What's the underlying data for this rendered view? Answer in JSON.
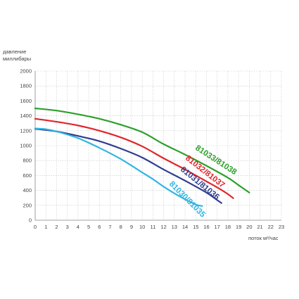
{
  "chart_data": {
    "type": "line",
    "ylabel_line1": "давление",
    "ylabel_line2": "миллибары",
    "xlabel": "поток м³/час",
    "xlim": [
      0,
      23
    ],
    "ylim": [
      0,
      2000
    ],
    "x_ticks": [
      "0",
      "1",
      "2",
      "3",
      "4",
      "5",
      "6",
      "7",
      "8",
      "9",
      "10",
      "11",
      "12",
      "13",
      "14",
      "15",
      "16",
      "17",
      "18",
      "19",
      "20",
      "21",
      "22",
      "23"
    ],
    "y_ticks": [
      "0",
      "200",
      "400",
      "600",
      "800",
      "1000",
      "1200",
      "1400",
      "1600",
      "1800",
      "2000"
    ],
    "grid": true,
    "series": [
      {
        "name": "81033/81038",
        "color": "#2ca02c",
        "x": [
          0,
          2,
          4,
          6,
          8,
          10,
          12,
          14,
          16,
          18,
          19,
          20
        ],
        "y": [
          1500,
          1470,
          1420,
          1360,
          1280,
          1180,
          1020,
          880,
          730,
          570,
          470,
          370
        ]
      },
      {
        "name": "81032/81037",
        "color": "#e0262b",
        "x": [
          0,
          2,
          4,
          6,
          8,
          10,
          12,
          14,
          16,
          17,
          18,
          18.5
        ],
        "y": [
          1360,
          1320,
          1270,
          1200,
          1110,
          990,
          830,
          680,
          520,
          440,
          350,
          295
        ]
      },
      {
        "name": "81031/81036",
        "color": "#2e3d8f",
        "x": [
          0,
          1,
          2,
          4,
          6,
          8,
          10,
          12,
          14,
          16,
          17,
          17.4
        ],
        "y": [
          1225,
          1210,
          1190,
          1130,
          1060,
          960,
          840,
          680,
          530,
          370,
          270,
          230
        ]
      },
      {
        "name": "81030/81035",
        "color": "#2fb5e3",
        "x": [
          0,
          1,
          2,
          4,
          6,
          8,
          10,
          11,
          12,
          13,
          14,
          15,
          15.6
        ],
        "y": [
          1230,
          1220,
          1190,
          1100,
          970,
          820,
          640,
          550,
          450,
          360,
          280,
          210,
          190
        ]
      }
    ]
  }
}
